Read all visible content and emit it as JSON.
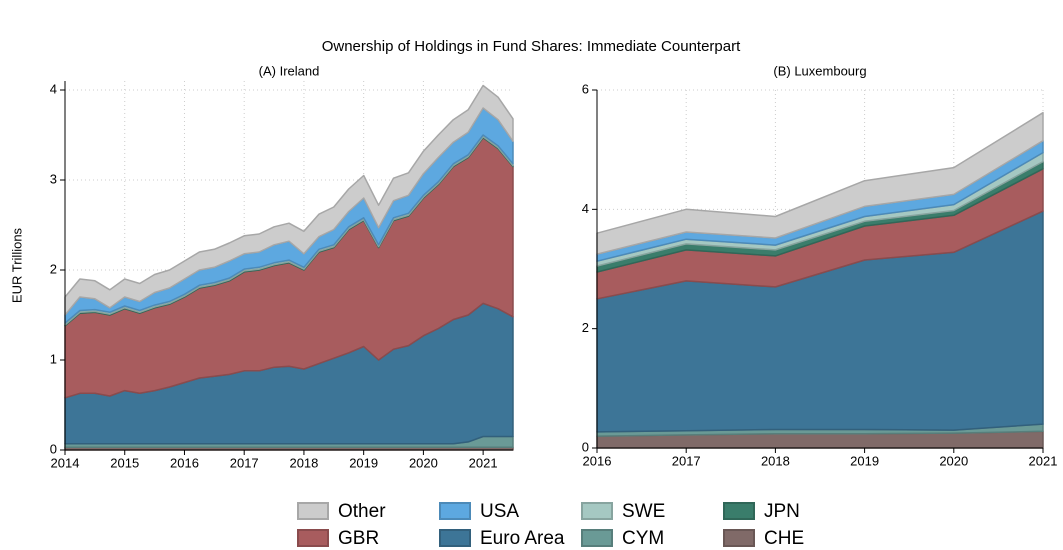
{
  "title": "Ownership of Holdings in Fund Shares: Immediate Counterpart",
  "chart_data": [
    {
      "type": "stacked-area",
      "title": "(A) Ireland",
      "y_label": "EUR Trillions",
      "x": [
        2014,
        2014.25,
        2014.5,
        2014.75,
        2015,
        2015.25,
        2015.5,
        2015.75,
        2016,
        2016.25,
        2016.5,
        2016.75,
        2017,
        2017.25,
        2017.5,
        2017.75,
        2018,
        2018.25,
        2018.5,
        2018.75,
        2019,
        2019.25,
        2019.5,
        2019.75,
        2020,
        2020.25,
        2020.5,
        2020.75,
        2021,
        2021.25,
        2021.5
      ],
      "xlim": [
        2014,
        2021.5
      ],
      "xticks": [
        2014,
        2015,
        2016,
        2017,
        2018,
        2019,
        2020,
        2021
      ],
      "ylim": [
        0,
        4.1
      ],
      "yticks": [
        0,
        1,
        2,
        3,
        4
      ],
      "grid": true,
      "series": [
        {
          "name": "CHE",
          "color": "#806a68",
          "values": [
            0.03,
            0.03,
            0.03,
            0.03,
            0.03,
            0.03,
            0.03,
            0.03,
            0.03,
            0.03,
            0.03,
            0.03,
            0.03,
            0.03,
            0.03,
            0.03,
            0.03,
            0.03,
            0.03,
            0.03,
            0.03,
            0.03,
            0.03,
            0.03,
            0.03,
            0.03,
            0.03,
            0.03,
            0.03,
            0.03,
            0.03
          ]
        },
        {
          "name": "CYM",
          "color": "#6a9a96",
          "values": [
            0.04,
            0.04,
            0.04,
            0.04,
            0.04,
            0.04,
            0.04,
            0.04,
            0.04,
            0.04,
            0.04,
            0.04,
            0.04,
            0.04,
            0.04,
            0.04,
            0.04,
            0.04,
            0.04,
            0.04,
            0.04,
            0.04,
            0.04,
            0.04,
            0.04,
            0.04,
            0.04,
            0.06,
            0.12,
            0.12,
            0.12
          ]
        },
        {
          "name": "Euro Area",
          "color": "#3d7597",
          "values": [
            0.51,
            0.56,
            0.56,
            0.53,
            0.59,
            0.56,
            0.59,
            0.63,
            0.68,
            0.73,
            0.75,
            0.77,
            0.81,
            0.81,
            0.85,
            0.86,
            0.83,
            0.89,
            0.95,
            1.01,
            1.08,
            0.93,
            1.05,
            1.09,
            1.2,
            1.28,
            1.38,
            1.41,
            1.48,
            1.42,
            1.33
          ]
        },
        {
          "name": "GBR",
          "color": "#a85c5e",
          "values": [
            0.8,
            0.89,
            0.9,
            0.9,
            0.91,
            0.89,
            0.92,
            0.92,
            0.95,
            1.0,
            1.01,
            1.04,
            1.1,
            1.12,
            1.13,
            1.15,
            1.1,
            1.24,
            1.23,
            1.37,
            1.4,
            1.25,
            1.43,
            1.44,
            1.53,
            1.6,
            1.7,
            1.75,
            1.84,
            1.78,
            1.67
          ]
        },
        {
          "name": "JPN",
          "color": "#3a7d6b",
          "values": [
            0.01,
            0.01,
            0.01,
            0.01,
            0.01,
            0.01,
            0.01,
            0.01,
            0.01,
            0.01,
            0.01,
            0.01,
            0.01,
            0.01,
            0.01,
            0.01,
            0.01,
            0.01,
            0.01,
            0.01,
            0.01,
            0.01,
            0.01,
            0.01,
            0.01,
            0.01,
            0.01,
            0.01,
            0.01,
            0.01,
            0.01
          ]
        },
        {
          "name": "SWE",
          "color": "#a5c8c2",
          "values": [
            0.02,
            0.02,
            0.02,
            0.02,
            0.02,
            0.02,
            0.02,
            0.02,
            0.02,
            0.02,
            0.02,
            0.02,
            0.02,
            0.02,
            0.02,
            0.02,
            0.02,
            0.02,
            0.02,
            0.02,
            0.02,
            0.02,
            0.02,
            0.02,
            0.02,
            0.02,
            0.02,
            0.02,
            0.02,
            0.02,
            0.02
          ]
        },
        {
          "name": "USA",
          "color": "#5da8e0",
          "values": [
            0.09,
            0.15,
            0.12,
            0.05,
            0.1,
            0.1,
            0.14,
            0.15,
            0.17,
            0.17,
            0.17,
            0.19,
            0.17,
            0.17,
            0.2,
            0.21,
            0.15,
            0.14,
            0.17,
            0.17,
            0.22,
            0.19,
            0.19,
            0.2,
            0.24,
            0.27,
            0.24,
            0.25,
            0.3,
            0.29,
            0.25
          ]
        },
        {
          "name": "Other",
          "color": "#cccccc",
          "values": [
            0.2,
            0.2,
            0.2,
            0.2,
            0.2,
            0.2,
            0.2,
            0.2,
            0.2,
            0.2,
            0.2,
            0.2,
            0.2,
            0.2,
            0.2,
            0.2,
            0.25,
            0.25,
            0.25,
            0.25,
            0.25,
            0.25,
            0.25,
            0.25,
            0.25,
            0.25,
            0.25,
            0.25,
            0.25,
            0.25,
            0.25
          ]
        }
      ]
    },
    {
      "type": "stacked-area",
      "title": "(B) Luxembourg",
      "x": [
        2016,
        2017,
        2018,
        2019,
        2020,
        2021
      ],
      "xlim": [
        2016,
        2021
      ],
      "xticks": [
        2016,
        2017,
        2018,
        2019,
        2020,
        2021
      ],
      "ylim": [
        0,
        6
      ],
      "yticks": [
        0,
        2,
        4,
        6
      ],
      "grid": true,
      "series": [
        {
          "name": "CHE",
          "color": "#806a68",
          "values": [
            0.2,
            0.22,
            0.24,
            0.24,
            0.25,
            0.28
          ]
        },
        {
          "name": "CYM",
          "color": "#6a9a96",
          "values": [
            0.07,
            0.07,
            0.07,
            0.07,
            0.05,
            0.12
          ]
        },
        {
          "name": "Euro Area",
          "color": "#3d7597",
          "values": [
            2.23,
            2.51,
            2.39,
            2.84,
            2.98,
            3.57
          ]
        },
        {
          "name": "GBR",
          "color": "#a85c5e",
          "values": [
            0.45,
            0.52,
            0.52,
            0.57,
            0.62,
            0.71
          ]
        },
        {
          "name": "JPN",
          "color": "#3a7d6b",
          "values": [
            0.1,
            0.1,
            0.1,
            0.08,
            0.08,
            0.12
          ]
        },
        {
          "name": "SWE",
          "color": "#a5c8c2",
          "values": [
            0.08,
            0.08,
            0.08,
            0.08,
            0.1,
            0.15
          ]
        },
        {
          "name": "USA",
          "color": "#5da8e0",
          "values": [
            0.12,
            0.12,
            0.12,
            0.17,
            0.17,
            0.2
          ]
        },
        {
          "name": "Other",
          "color": "#cccccc",
          "values": [
            0.35,
            0.38,
            0.36,
            0.43,
            0.45,
            0.47
          ]
        }
      ]
    }
  ]
}
